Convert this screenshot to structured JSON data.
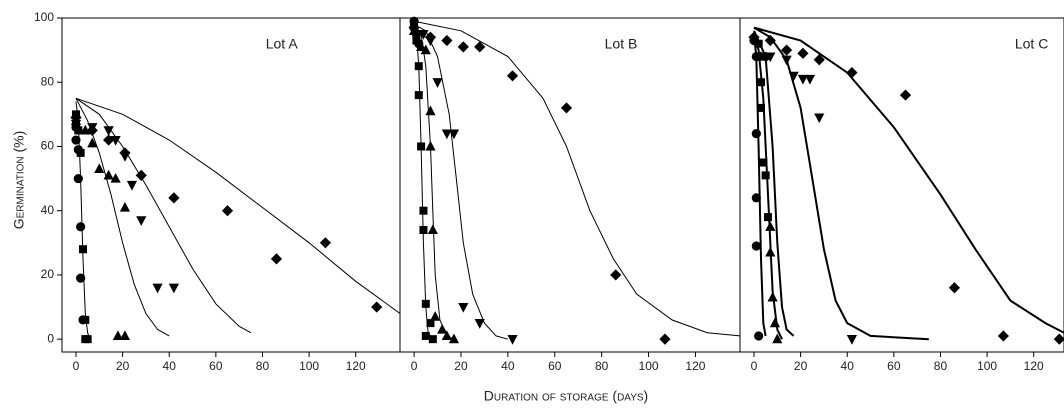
{
  "chart_data": [
    {
      "type": "scatter",
      "title": "Lot A",
      "y_label": "Germination (%)",
      "xlim": [
        -6,
        139
      ],
      "ylim": [
        -4,
        100
      ],
      "xticks": [
        0,
        20,
        40,
        60,
        80,
        100,
        120
      ],
      "yticks": [
        0,
        20,
        40,
        60,
        80,
        100
      ],
      "line_width": 1,
      "series": [
        {
          "marker": "circle",
          "color": "#000000",
          "x": [
            0,
            0,
            1,
            1,
            2,
            2,
            3
          ],
          "values": [
            66,
            62,
            59,
            50,
            35,
            19,
            6
          ]
        },
        {
          "marker": "square",
          "color": "#000000",
          "x": [
            0,
            0,
            1,
            2,
            3,
            4,
            4,
            5
          ],
          "values": [
            70,
            67,
            65,
            58,
            28,
            6,
            0,
            0
          ]
        },
        {
          "marker": "triangle-up",
          "color": "#000000",
          "x": [
            0,
            4,
            7,
            10,
            14,
            17,
            21,
            18,
            21
          ],
          "values": [
            68,
            65,
            61,
            53,
            51,
            50,
            41,
            1,
            1
          ]
        },
        {
          "marker": "triangle-down",
          "color": "#000000",
          "x": [
            0,
            7,
            14,
            17,
            21,
            24,
            28,
            35,
            42
          ],
          "values": [
            67,
            66,
            65,
            62,
            57,
            48,
            37,
            16,
            16
          ]
        },
        {
          "marker": "diamond",
          "color": "#000000",
          "x": [
            0,
            7,
            14,
            21,
            28,
            42,
            65,
            86,
            107,
            129
          ],
          "values": [
            69,
            65,
            62,
            58,
            51,
            44,
            40,
            25,
            30,
            10
          ]
        }
      ],
      "curves": [
        {
          "x": [
            0,
            1,
            2,
            3,
            4,
            5,
            6
          ],
          "values": [
            74,
            68,
            50,
            25,
            8,
            2,
            0
          ]
        },
        {
          "x": [
            0,
            5,
            10,
            15,
            20,
            25,
            30,
            35,
            40
          ],
          "values": [
            75,
            68,
            58,
            45,
            30,
            17,
            8,
            3,
            1
          ]
        },
        {
          "x": [
            0,
            10,
            20,
            30,
            40,
            50,
            60,
            70,
            75
          ],
          "values": [
            75,
            70,
            60,
            48,
            35,
            22,
            11,
            4,
            2
          ]
        },
        {
          "x": [
            0,
            20,
            40,
            60,
            80,
            100,
            120,
            139
          ],
          "values": [
            75,
            70,
            62,
            52,
            41,
            30,
            18,
            8
          ]
        }
      ]
    },
    {
      "type": "scatter",
      "title": "Lot B",
      "x_label": "Duration of storage (days)",
      "xlim": [
        -6,
        139
      ],
      "ylim": [
        -4,
        100
      ],
      "xticks": [
        0,
        20,
        40,
        60,
        80,
        100,
        120
      ],
      "line_width": 1,
      "series": [
        {
          "marker": "circle",
          "color": "#000000",
          "x": [
            0,
            0,
            1,
            2
          ],
          "values": [
            99,
            97,
            95,
            92
          ]
        },
        {
          "marker": "square",
          "color": "#000000",
          "x": [
            0,
            1,
            2,
            2,
            3,
            4,
            4,
            5,
            5,
            7,
            8
          ],
          "values": [
            98,
            93,
            85,
            76,
            60,
            40,
            34,
            11,
            1,
            5,
            0
          ]
        },
        {
          "marker": "triangle-up",
          "color": "#000000",
          "x": [
            0,
            3,
            5,
            7,
            7,
            8,
            9,
            12,
            14,
            17
          ],
          "values": [
            96,
            91,
            90,
            71,
            60,
            34,
            7,
            3,
            1,
            0
          ]
        },
        {
          "marker": "triangle-down",
          "color": "#000000",
          "x": [
            0,
            4,
            7,
            10,
            14,
            17,
            21,
            28,
            42
          ],
          "values": [
            96,
            95,
            93,
            80,
            64,
            64,
            10,
            5,
            0
          ]
        },
        {
          "marker": "diamond",
          "color": "#000000",
          "x": [
            0,
            7,
            14,
            21,
            28,
            42,
            65,
            86,
            107
          ],
          "values": [
            97,
            94,
            93,
            91,
            91,
            82,
            72,
            20,
            0
          ]
        }
      ],
      "curves": [
        {
          "x": [
            0,
            1,
            2,
            3,
            4,
            5,
            6,
            8
          ],
          "values": [
            98,
            95,
            85,
            60,
            30,
            10,
            2,
            0
          ]
        },
        {
          "x": [
            0,
            3,
            5,
            7,
            8,
            9,
            11,
            14,
            17
          ],
          "values": [
            98,
            95,
            85,
            60,
            40,
            20,
            6,
            1,
            0
          ]
        },
        {
          "x": [
            0,
            5,
            10,
            15,
            18,
            21,
            25,
            30,
            35,
            40
          ],
          "values": [
            98,
            96,
            88,
            70,
            50,
            30,
            14,
            5,
            1,
            0
          ]
        },
        {
          "x": [
            0,
            20,
            40,
            55,
            65,
            75,
            85,
            95,
            110,
            125,
            139
          ],
          "values": [
            99,
            96,
            88,
            75,
            60,
            40,
            25,
            14,
            6,
            2,
            1
          ]
        }
      ]
    },
    {
      "type": "scatter",
      "title": "Lot C",
      "xlim": [
        -6,
        133
      ],
      "ylim": [
        -4,
        100
      ],
      "xticks": [
        0,
        20,
        40,
        60,
        80,
        100,
        120
      ],
      "line_width": 2,
      "series": [
        {
          "marker": "circle",
          "color": "#000000",
          "x": [
            0,
            1,
            1,
            1,
            1,
            2,
            5
          ],
          "values": [
            93,
            88,
            64,
            44,
            29,
            1,
            88
          ]
        },
        {
          "marker": "square",
          "color": "#000000",
          "x": [
            2,
            2,
            3,
            3,
            4,
            5,
            6
          ],
          "values": [
            92,
            88,
            80,
            72,
            55,
            51,
            38
          ]
        },
        {
          "marker": "triangle-up",
          "color": "#000000",
          "x": [
            3,
            7,
            7,
            8,
            9,
            10
          ],
          "values": [
            88,
            35,
            27,
            13,
            5,
            0
          ]
        },
        {
          "marker": "triangle-down",
          "color": "#000000",
          "x": [
            7,
            14,
            17,
            21,
            24,
            28,
            42
          ],
          "values": [
            88,
            87,
            82,
            81,
            81,
            69,
            0
          ]
        },
        {
          "marker": "diamond",
          "color": "#000000",
          "x": [
            0,
            7,
            14,
            21,
            28,
            42,
            65,
            86,
            107,
            131
          ],
          "values": [
            94,
            93,
            90,
            89,
            87,
            83,
            76,
            16,
            1,
            0
          ]
        }
      ],
      "curves": [
        {
          "x": [
            0,
            1,
            2,
            3,
            4,
            5
          ],
          "values": [
            95,
            88,
            60,
            25,
            5,
            1
          ]
        },
        {
          "x": [
            0,
            2,
            4,
            6,
            8,
            10,
            12
          ],
          "values": [
            95,
            90,
            75,
            45,
            15,
            3,
            0
          ]
        },
        {
          "x": [
            0,
            5,
            8,
            10,
            12,
            14,
            17
          ],
          "values": [
            96,
            88,
            60,
            30,
            10,
            3,
            1
          ]
        },
        {
          "x": [
            0,
            7,
            14,
            20,
            25,
            30,
            35,
            40,
            50,
            75
          ],
          "values": [
            97,
            94,
            87,
            72,
            50,
            28,
            12,
            5,
            1,
            0
          ]
        },
        {
          "x": [
            0,
            20,
            40,
            60,
            80,
            95,
            110,
            125,
            133
          ],
          "values": [
            97,
            93,
            83,
            66,
            45,
            28,
            12,
            5,
            2
          ]
        }
      ]
    }
  ]
}
